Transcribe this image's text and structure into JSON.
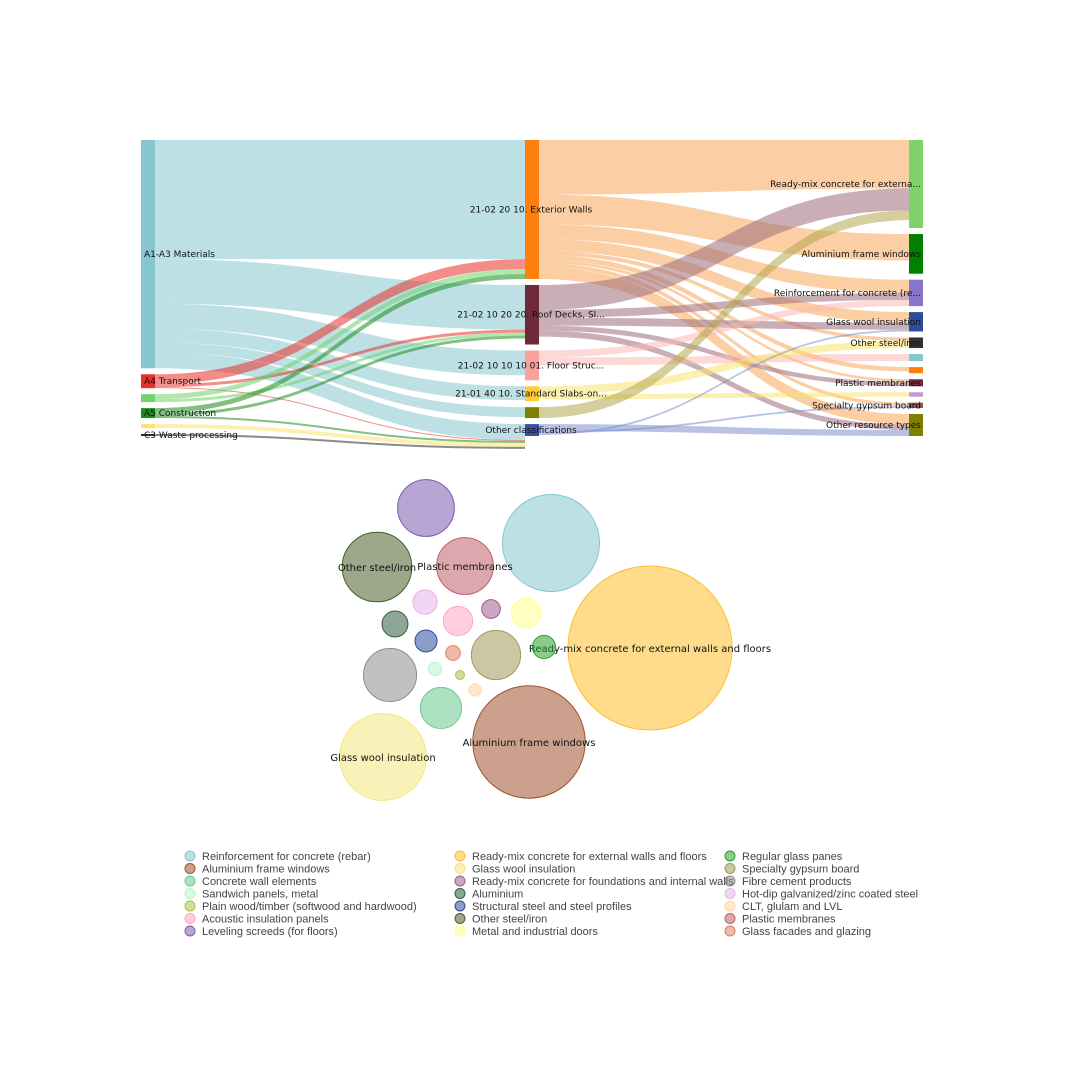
{
  "chart_data": [
    {
      "type": "sankey",
      "columns": [
        {
          "nodes": [
            {
              "key": "A1-A3",
              "label": "A1-A3 Materials",
              "color": "#86C7CF",
              "value": 230
            },
            {
              "key": "A4",
              "label": "A4 Transport",
              "color": "#E8302A",
              "value": 14
            },
            {
              "key": "A4b",
              "label": "",
              "color": "#6FD36A",
              "value": 8
            },
            {
              "key": "A5",
              "label": "A5 Construction",
              "color": "#1C8C1C",
              "value": 10
            },
            {
              "key": "C3a",
              "label": "",
              "color": "#F9E36E",
              "value": 4
            },
            {
              "key": "C3",
              "label": "C3 Waste processing",
              "color": "#2C2C2C",
              "value": 2
            }
          ]
        },
        {
          "nodes": [
            {
              "key": "EW",
              "label": "21-02 20 10. Exterior Walls",
              "color": "#FF7F0E",
              "value": 140
            },
            {
              "key": "RD",
              "label": "21-02 10 20 20. Roof Decks, Sl...",
              "color": "#6E2A3C",
              "value": 60
            },
            {
              "key": "FS",
              "label": "21-02 10 10 10 01. Floor Struc...",
              "color": "#F9A19A",
              "value": 30
            },
            {
              "key": "SS",
              "label": "21-01 40 10. Standard Slabs-on...",
              "color": "#FFCC33",
              "value": 15
            },
            {
              "key": "OL",
              "label": "",
              "color": "#7F7F00",
              "value": 11
            },
            {
              "key": "OC",
              "label": "Other classifications",
              "color": "#3A4FA0",
              "value": 12
            }
          ]
        },
        {
          "nodes": [
            {
              "key": "RM",
              "label": "Ready-mix concrete for externa...",
              "color": "#7FD26A",
              "value": 100
            },
            {
              "key": "AF",
              "label": "Aluminium frame windows",
              "color": "#008000",
              "value": 45
            },
            {
              "key": "RC",
              "label": "Reinforcement for concrete (re...",
              "color": "#8874C9",
              "value": 30
            },
            {
              "key": "GW",
              "label": "Glass wool insulation",
              "color": "#2E4C9A",
              "value": 22
            },
            {
              "key": "OS",
              "label": "Other steel/iron",
              "color": "#333333",
              "value": 12
            },
            {
              "key": "T1",
              "label": "",
              "color": "#86C7CF",
              "value": 8
            },
            {
              "key": "T2",
              "label": "",
              "color": "#FF7F0E",
              "value": 7
            },
            {
              "key": "PM",
              "label": "Plastic membranes",
              "color": "#6E2A3C",
              "value": 8
            },
            {
              "key": "T3",
              "label": "",
              "color": "#C39BD3",
              "value": 5
            },
            {
              "key": "SG",
              "label": "Specialty gypsum board",
              "color": "#8C564B",
              "value": 6
            },
            {
              "key": "OR",
              "label": "Other resource types",
              "color": "#7F7F00",
              "value": 25
            }
          ]
        }
      ],
      "links": [
        {
          "s": "A1-A3",
          "t": "EW",
          "v": 120,
          "color": "#86C7CF"
        },
        {
          "s": "A1-A3",
          "t": "RD",
          "v": 45,
          "color": "#86C7CF"
        },
        {
          "s": "A1-A3",
          "t": "FS",
          "v": 25,
          "color": "#86C7CF"
        },
        {
          "s": "A1-A3",
          "t": "SS",
          "v": 14,
          "color": "#86C7CF"
        },
        {
          "s": "A1-A3",
          "t": "OL",
          "v": 10,
          "color": "#86C7CF"
        },
        {
          "s": "A1-A3",
          "t": "OC",
          "v": 16,
          "color": "#86C7CF"
        },
        {
          "s": "A4",
          "t": "EW",
          "v": 10,
          "color": "#E8302A"
        },
        {
          "s": "A4",
          "t": "RD",
          "v": 3,
          "color": "#E8302A"
        },
        {
          "s": "A4",
          "t": "OC",
          "v": 1,
          "color": "#E8302A"
        },
        {
          "s": "A4b",
          "t": "EW",
          "v": 5,
          "color": "#6FD36A"
        },
        {
          "s": "A4b",
          "t": "RD",
          "v": 3,
          "color": "#6FD36A"
        },
        {
          "s": "A5",
          "t": "EW",
          "v": 5,
          "color": "#1C8C1C"
        },
        {
          "s": "A5",
          "t": "RD",
          "v": 3,
          "color": "#1C8C1C"
        },
        {
          "s": "A5",
          "t": "OC",
          "v": 2,
          "color": "#1C8C1C"
        },
        {
          "s": "C3a",
          "t": "OC",
          "v": 4,
          "color": "#F9E36E"
        },
        {
          "s": "C3",
          "t": "OC",
          "v": 2,
          "color": "#2C2C2C"
        },
        {
          "s": "EW",
          "t": "RM",
          "v": 55,
          "color": "#F7A55A"
        },
        {
          "s": "EW",
          "t": "AF",
          "v": 30,
          "color": "#F7A55A"
        },
        {
          "s": "EW",
          "t": "RC",
          "v": 15,
          "color": "#F7A55A"
        },
        {
          "s": "EW",
          "t": "GW",
          "v": 12,
          "color": "#F7A55A"
        },
        {
          "s": "EW",
          "t": "OS",
          "v": 4,
          "color": "#F7A55A"
        },
        {
          "s": "EW",
          "t": "T2",
          "v": 5,
          "color": "#F7A55A"
        },
        {
          "s": "EW",
          "t": "PM",
          "v": 3,
          "color": "#F7A55A"
        },
        {
          "s": "EW",
          "t": "SG",
          "v": 4,
          "color": "#F7A55A"
        },
        {
          "s": "EW",
          "t": "OR",
          "v": 12,
          "color": "#F7A55A"
        },
        {
          "s": "RD",
          "t": "RM",
          "v": 25,
          "color": "#9C6B7A"
        },
        {
          "s": "RD",
          "t": "RC",
          "v": 8,
          "color": "#9C6B7A"
        },
        {
          "s": "RD",
          "t": "GW",
          "v": 8,
          "color": "#9C6B7A"
        },
        {
          "s": "RD",
          "t": "PM",
          "v": 5,
          "color": "#9C6B7A"
        },
        {
          "s": "RD",
          "t": "OR",
          "v": 6,
          "color": "#9C6B7A"
        },
        {
          "s": "FS",
          "t": "RC",
          "v": 7,
          "color": "#F9B9B2"
        },
        {
          "s": "FS",
          "t": "T1",
          "v": 8,
          "color": "#F9B9B2"
        },
        {
          "s": "SS",
          "t": "OS",
          "v": 8,
          "color": "#F9E36E"
        },
        {
          "s": "SS",
          "t": "T3",
          "v": 5,
          "color": "#F9E36E"
        },
        {
          "s": "OL",
          "t": "RM",
          "v": 11,
          "color": "#B0A84A"
        },
        {
          "s": "OC",
          "t": "OR",
          "v": 7,
          "color": "#7F8FD0"
        },
        {
          "s": "OC",
          "t": "SG",
          "v": 2,
          "color": "#7F8FD0"
        },
        {
          "s": "OC",
          "t": "GW",
          "v": 2,
          "color": "#7F8FD0"
        }
      ]
    },
    {
      "type": "bubble",
      "bubbles": [
        {
          "label": "Ready-mix concrete for external walls and floors",
          "value": 100,
          "color": "#FDBF2D",
          "text": "Ready-mix concrete for external walls and floors"
        },
        {
          "label": "Aluminium frame windows",
          "value": 47,
          "color": "#A0522D",
          "text": "Aluminium frame windows"
        },
        {
          "label": "Reinforcement for concrete (rebar)",
          "value": 35,
          "color": "#86C7CF",
          "text": ""
        },
        {
          "label": "Glass wool insulation",
          "value": 28,
          "color": "#F4E57D",
          "text": "Glass wool insulation"
        },
        {
          "label": "Other steel/iron",
          "value": 18,
          "color": "#4B5F2B",
          "text": "Other steel/iron"
        },
        {
          "label": "Plastic membranes",
          "value": 12,
          "color": "#C0606A",
          "text": "Plastic membranes"
        },
        {
          "label": "Leveling screeds (for floors)",
          "value": 12,
          "color": "#7E5BAF",
          "text": ""
        },
        {
          "label": "Fibre cement products",
          "value": 10.5,
          "color": "#8E8E8E",
          "text": ""
        },
        {
          "label": "Specialty gypsum board",
          "value": 9,
          "color": "#9E9A5A",
          "text": ""
        },
        {
          "label": "Concrete wall elements",
          "value": 6.3,
          "color": "#6CC98F",
          "text": ""
        },
        {
          "label": "Metal and industrial doors",
          "value": 3.2,
          "color": "#FFFF8F",
          "text": ""
        },
        {
          "label": "Acoustic insulation panels",
          "value": 3.2,
          "color": "#FFA7C4",
          "text": ""
        },
        {
          "label": "Hot-dip galvanized/zinc coated steel",
          "value": 2.2,
          "color": "#E6B4E9",
          "text": ""
        },
        {
          "label": "Aluminium",
          "value": 2.5,
          "color": "#2F5D3F",
          "text": ""
        },
        {
          "label": "Regular glass panes",
          "value": 2,
          "color": "#2CA02C",
          "text": ""
        },
        {
          "label": "Structural steel and steel profiles",
          "value": 1.8,
          "color": "#2E4C9A",
          "text": ""
        },
        {
          "label": "Ready-mix concrete for foundations and internal walls",
          "value": 1.3,
          "color": "#A05C8F",
          "text": ""
        },
        {
          "label": "Glass facades and glazing",
          "value": 0.8,
          "color": "#E08060",
          "text": ""
        },
        {
          "label": "CLT, glulam and LVL",
          "value": 0.55,
          "color": "#FFD6A5",
          "text": ""
        },
        {
          "label": "Sandwich panels, metal",
          "value": 0.65,
          "color": "#B8F5C8",
          "text": ""
        },
        {
          "label": "Plain wood/timber (softwood and hardwood)",
          "value": 0.3,
          "color": "#A9C24A",
          "text": ""
        }
      ]
    }
  ],
  "legend": {
    "columns": [
      [
        {
          "label": "Reinforcement for concrete (rebar)",
          "color": "#86C7CF"
        },
        {
          "label": "Aluminium frame windows",
          "color": "#A0522D"
        },
        {
          "label": "Concrete wall elements",
          "color": "#6CC98F"
        },
        {
          "label": "Sandwich panels, metal",
          "color": "#B8F5C8"
        },
        {
          "label": "Plain wood/timber (softwood and hardwood)",
          "color": "#A9C24A"
        },
        {
          "label": "Acoustic insulation panels",
          "color": "#FFA7C4"
        },
        {
          "label": "Leveling screeds (for floors)",
          "color": "#7E5BAF"
        }
      ],
      [
        {
          "label": "Ready-mix concrete for external walls and floors",
          "color": "#FDBF2D"
        },
        {
          "label": "Glass wool insulation",
          "color": "#F4E57D"
        },
        {
          "label": "Ready-mix concrete for foundations and internal walls",
          "color": "#A05C8F"
        },
        {
          "label": "Aluminium",
          "color": "#2F5D3F"
        },
        {
          "label": "Structural steel and steel profiles",
          "color": "#2E4C9A"
        },
        {
          "label": "Other steel/iron",
          "color": "#4B5F2B"
        },
        {
          "label": "Metal and industrial doors",
          "color": "#FFFF8F"
        }
      ],
      [
        {
          "label": "Regular glass panes",
          "color": "#2CA02C"
        },
        {
          "label": "Specialty gypsum board",
          "color": "#9E9A5A"
        },
        {
          "label": "Fibre cement products",
          "color": "#8E8E8E"
        },
        {
          "label": "Hot-dip galvanized/zinc coated steel",
          "color": "#E6B4E9"
        },
        {
          "label": "CLT, glulam and LVL",
          "color": "#FFD6A5"
        },
        {
          "label": "Plastic membranes",
          "color": "#C0606A"
        },
        {
          "label": "Glass facades and glazing",
          "color": "#E08060"
        }
      ]
    ]
  }
}
